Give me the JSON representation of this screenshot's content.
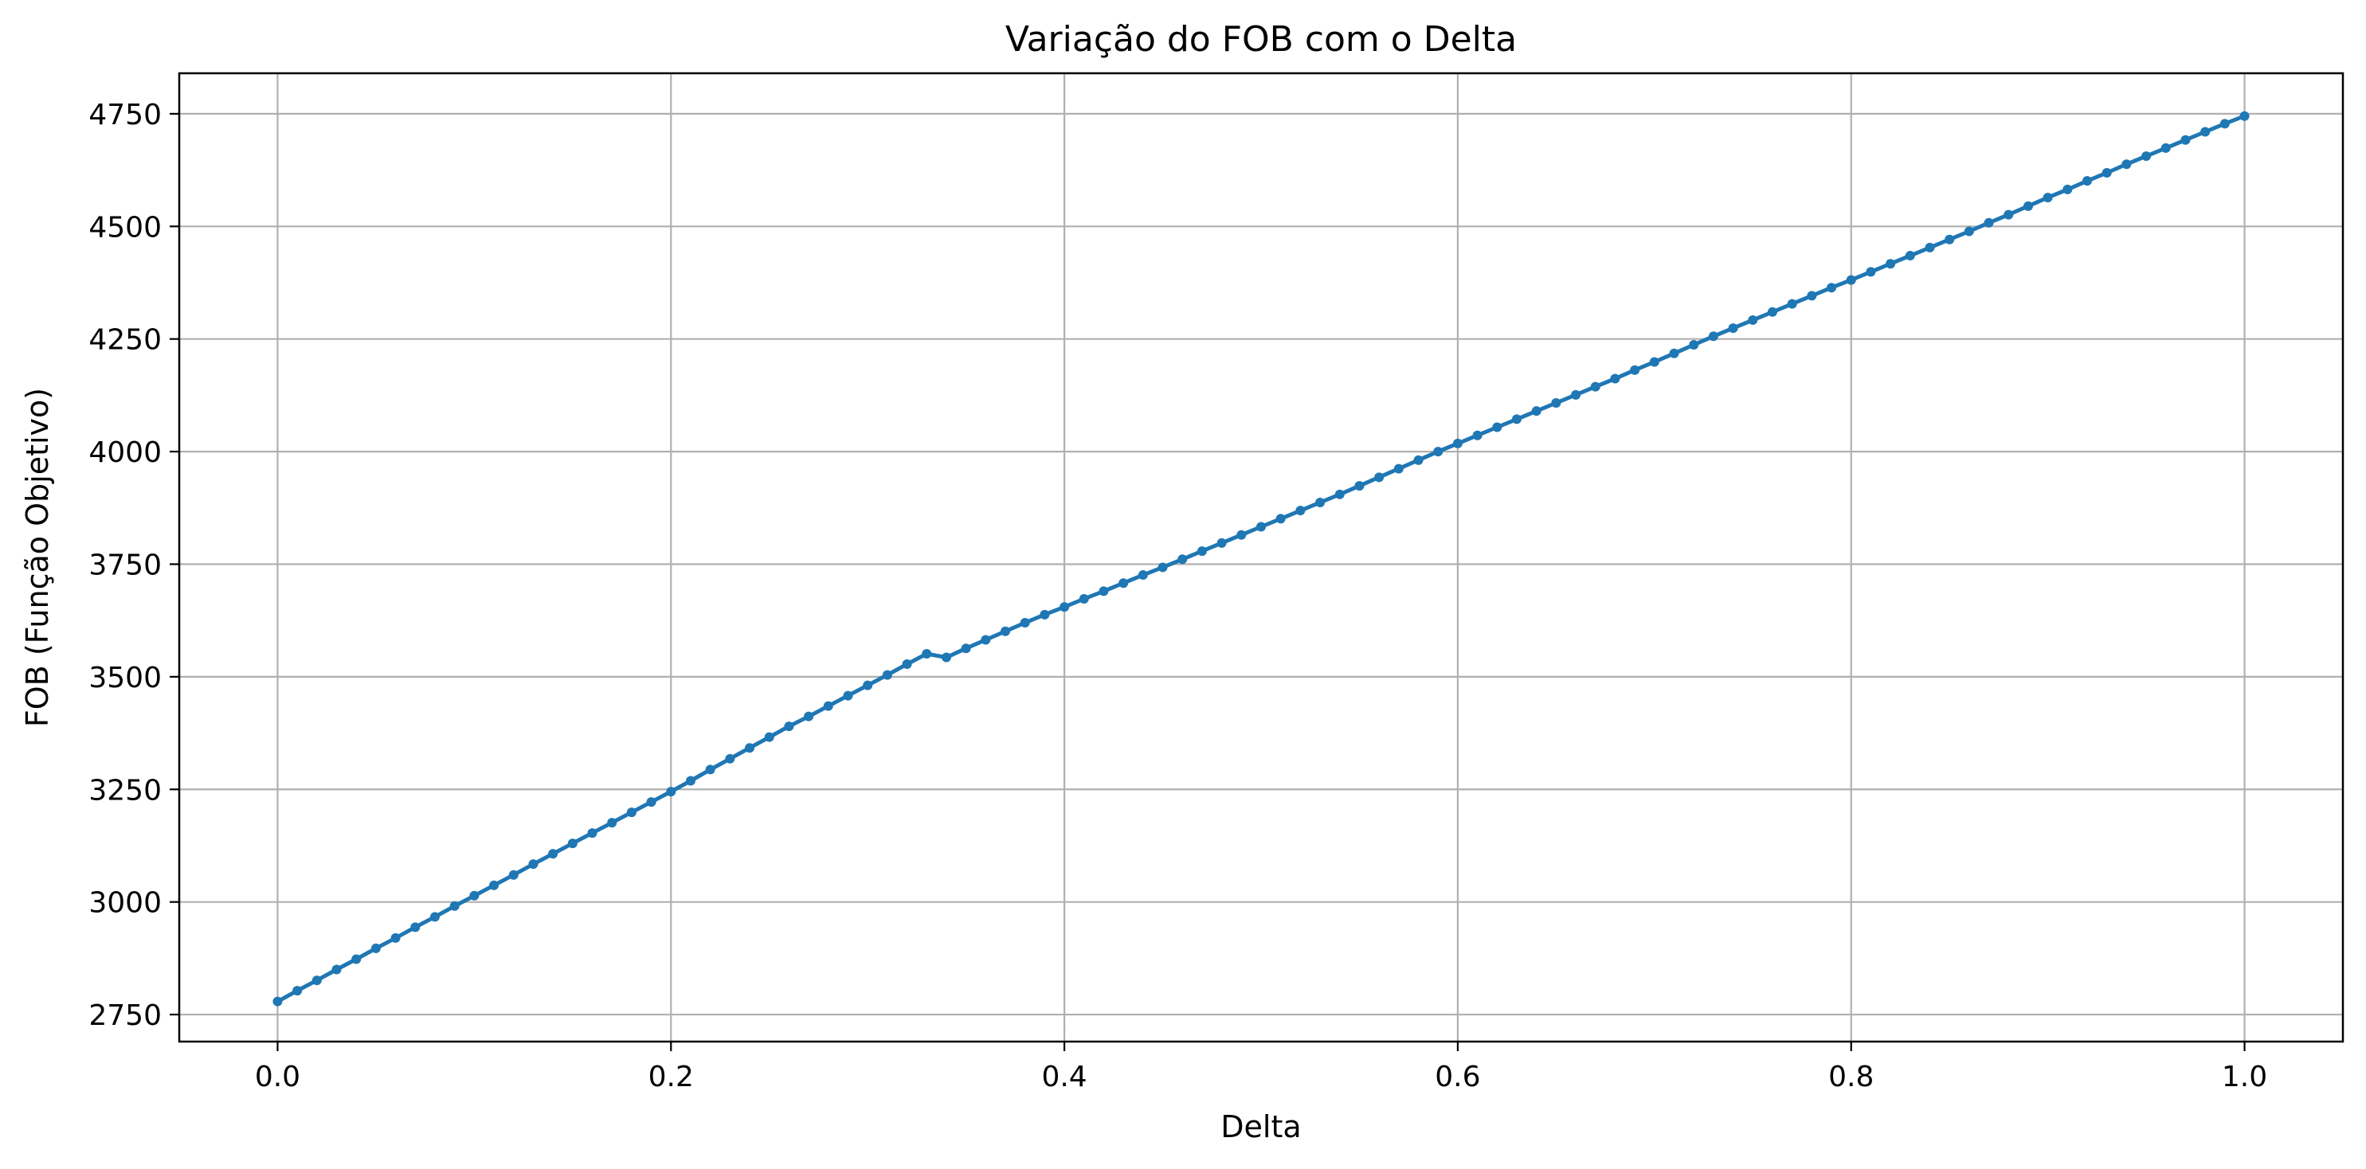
{
  "chart_data": {
    "type": "line",
    "title": "Variação do FOB com o Delta",
    "xlabel": "Delta",
    "ylabel": "FOB (Função Objetivo)",
    "xlim": [
      -0.05,
      1.05
    ],
    "ylim": [
      2690,
      4840
    ],
    "xticks": [
      0.0,
      0.2,
      0.4,
      0.6,
      0.8,
      1.0
    ],
    "xtick_labels": [
      "0.0",
      "0.2",
      "0.4",
      "0.6",
      "0.8",
      "1.0"
    ],
    "yticks": [
      2750,
      3000,
      3250,
      3500,
      3750,
      4000,
      4250,
      4500,
      4750
    ],
    "ytick_labels": [
      "2750",
      "3000",
      "3250",
      "3500",
      "3750",
      "4000",
      "4250",
      "4500",
      "4750"
    ],
    "grid": true,
    "series": [
      {
        "color": "#1f77b4",
        "marker": "circle",
        "x": [
          0.0,
          0.01,
          0.02,
          0.03,
          0.04,
          0.05,
          0.06,
          0.07,
          0.08,
          0.09,
          0.1,
          0.11,
          0.12,
          0.13,
          0.14,
          0.15,
          0.16,
          0.17,
          0.18,
          0.19,
          0.2,
          0.21,
          0.22,
          0.23,
          0.24,
          0.25,
          0.26,
          0.27,
          0.28,
          0.29,
          0.3,
          0.31,
          0.32,
          0.33,
          0.34,
          0.35,
          0.36,
          0.37,
          0.38,
          0.39,
          0.4,
          0.41,
          0.42,
          0.43,
          0.44,
          0.45,
          0.46,
          0.47,
          0.48,
          0.49,
          0.5,
          0.51,
          0.52,
          0.53,
          0.54,
          0.55,
          0.56,
          0.57,
          0.58,
          0.59,
          0.6,
          0.61,
          0.62,
          0.63,
          0.64,
          0.65,
          0.66,
          0.67,
          0.68,
          0.69,
          0.7,
          0.71,
          0.72,
          0.73,
          0.74,
          0.75,
          0.76,
          0.77,
          0.78,
          0.79,
          0.8,
          0.81,
          0.82,
          0.83,
          0.84,
          0.85,
          0.86,
          0.87,
          0.88,
          0.89,
          0.9,
          0.91,
          0.92,
          0.93,
          0.94,
          0.95,
          0.96,
          0.97,
          0.98,
          0.99,
          1.0
        ],
        "y": [
          2779,
          2803,
          2826,
          2850,
          2873,
          2897,
          2920,
          2944,
          2967,
          2991,
          3014,
          3037,
          3060,
          3084,
          3107,
          3130,
          3153,
          3176,
          3199,
          3222,
          3245,
          3269,
          3294,
          3318,
          3342,
          3366,
          3390,
          3412,
          3435,
          3458,
          3481,
          3504,
          3528,
          3551,
          3543,
          3563,
          3582,
          3601,
          3620,
          3638,
          3655,
          3673,
          3690,
          3708,
          3726,
          3743,
          3761,
          3779,
          3797,
          3815,
          3833,
          3851,
          3869,
          3887,
          3905,
          3924,
          3943,
          3962,
          3981,
          4000,
          4018,
          4036,
          4054,
          4072,
          4090,
          4108,
          4126,
          4144,
          4162,
          4181,
          4199,
          4218,
          4237,
          4256,
          4274,
          4292,
          4310,
          4328,
          4346,
          4364,
          4381,
          4399,
          4417,
          4435,
          4453,
          4471,
          4489,
          4508,
          4526,
          4545,
          4564,
          4582,
          4601,
          4619,
          4638,
          4656,
          4674,
          4692,
          4710,
          4728,
          4745
        ]
      }
    ]
  }
}
